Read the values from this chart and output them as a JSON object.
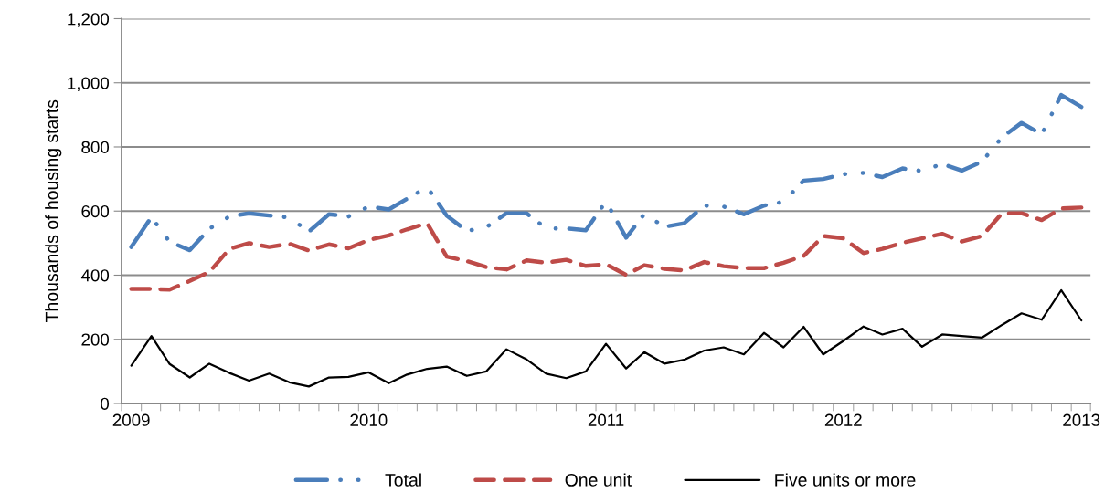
{
  "chart_data": {
    "type": "line",
    "ylabel": "Thousands of housing starts",
    "x": [
      "2009-01",
      "2009-02",
      "2009-03",
      "2009-04",
      "2009-05",
      "2009-06",
      "2009-07",
      "2009-08",
      "2009-09",
      "2009-10",
      "2009-11",
      "2009-12",
      "2010-01",
      "2010-02",
      "2010-03",
      "2010-04",
      "2010-05",
      "2010-06",
      "2010-07",
      "2010-08",
      "2010-09",
      "2010-10",
      "2010-11",
      "2010-12",
      "2011-01",
      "2011-02",
      "2011-03",
      "2011-04",
      "2011-05",
      "2011-06",
      "2011-07",
      "2011-08",
      "2011-09",
      "2011-10",
      "2011-11",
      "2011-12",
      "2012-01",
      "2012-02",
      "2012-03",
      "2012-04",
      "2012-05",
      "2012-06",
      "2012-07",
      "2012-08",
      "2012-09",
      "2012-10",
      "2012-11",
      "2012-12",
      "2013-01"
    ],
    "series": [
      {
        "name": "Total",
        "color": "#4a7ebb",
        "line_style": "dashdotdot",
        "values": [
          488,
          581,
          504,
          478,
          545,
          583,
          593,
          586,
          580,
          536,
          590,
          583,
          614,
          605,
          638,
          675,
          586,
          538,
          550,
          593,
          593,
          546,
          546,
          540,
          630,
          517,
          591,
          551,
          562,
          617,
          614,
          590,
          617,
          629,
          695,
          700,
          715,
          719,
          706,
          733,
          725,
          747,
          726,
          754,
          830,
          875,
          839,
          962,
          925
        ]
      },
      {
        "name": "One unit",
        "color": "#be4b48",
        "line_style": "dashed",
        "values": [
          357,
          357,
          355,
          382,
          410,
          482,
          500,
          488,
          498,
          477,
          496,
          484,
          510,
          524,
          543,
          562,
          458,
          444,
          425,
          418,
          446,
          439,
          448,
          429,
          434,
          401,
          431,
          420,
          415,
          441,
          428,
          422,
          422,
          439,
          460,
          522,
          515,
          469,
          482,
          501,
          515,
          529,
          505,
          522,
          593,
          593,
          572,
          608,
          611
        ]
      },
      {
        "name": "Five units or more",
        "color": "#000000",
        "line_style": "solid",
        "values": [
          118,
          210,
          123,
          81,
          124,
          95,
          71,
          93,
          66,
          53,
          81,
          83,
          97,
          63,
          90,
          108,
          115,
          86,
          100,
          169,
          137,
          93,
          79,
          100,
          186,
          109,
          160,
          124,
          136,
          165,
          175,
          153,
          220,
          175,
          239,
          153,
          195,
          240,
          215,
          233,
          177,
          215,
          210,
          205,
          245,
          281,
          261,
          353,
          259
        ]
      }
    ],
    "xlim": [
      "2008-12-17",
      "2013-01-15"
    ],
    "xticks": [
      {
        "value": "2009-01",
        "label": "2009"
      },
      {
        "value": "2010-01",
        "label": "2010"
      },
      {
        "value": "2011-01",
        "label": "2011"
      },
      {
        "value": "2012-01",
        "label": "2012"
      },
      {
        "value": "2013-01",
        "label": "2013"
      }
    ],
    "ylim": [
      0,
      1200
    ],
    "yticks": [
      {
        "value": 0,
        "label": "0"
      },
      {
        "value": 200,
        "label": "200"
      },
      {
        "value": 400,
        "label": "400"
      },
      {
        "value": 600,
        "label": "600"
      },
      {
        "value": 800,
        "label": "800"
      },
      {
        "value": 1000,
        "label": "1,000"
      },
      {
        "value": 1200,
        "label": "1,200"
      }
    ],
    "grid": "y",
    "legend": "bottom"
  }
}
